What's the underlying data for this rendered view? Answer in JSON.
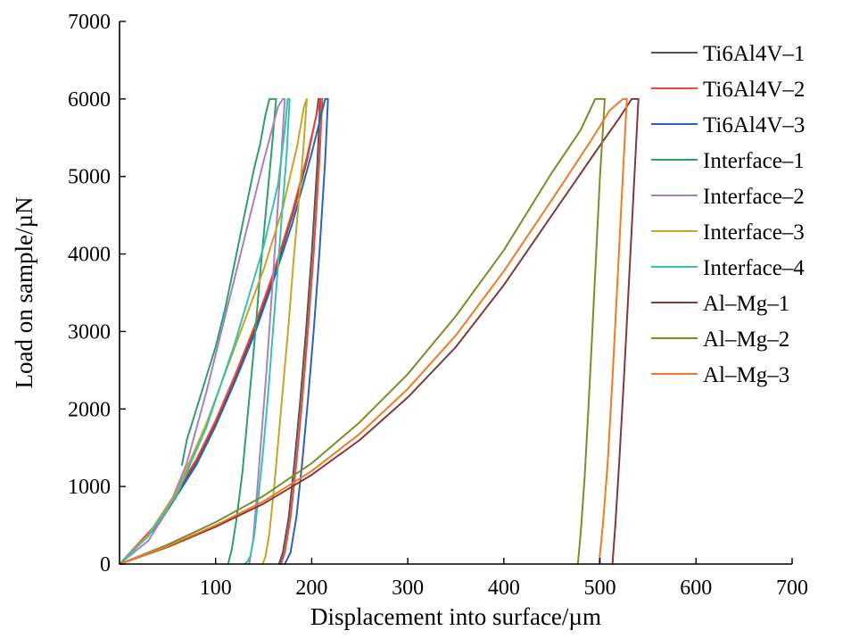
{
  "chart_data": {
    "type": "line",
    "xlabel": "Displacement into surface/µm",
    "ylabel": "Load on sample/µN",
    "xlim": [
      0,
      700
    ],
    "ylim": [
      0,
      7000
    ],
    "x_ticks": [
      100,
      200,
      300,
      400,
      500,
      600,
      700
    ],
    "y_ticks": [
      0,
      1000,
      2000,
      3000,
      4000,
      5000,
      6000,
      7000
    ],
    "grid": false,
    "legend_position": "top-right",
    "series": [
      {
        "name": "Ti6Al4V–1",
        "color": "#555555",
        "x": [
          0,
          40,
          80,
          100,
          120,
          140,
          160,
          180,
          195,
          205,
          207,
          209,
          206,
          200,
          194,
          188,
          182,
          176,
          170,
          166
        ],
        "y": [
          0,
          520,
          1320,
          1820,
          2400,
          3000,
          3700,
          4500,
          5200,
          5800,
          6000,
          6000,
          5200,
          4000,
          3000,
          2100,
          1300,
          600,
          150,
          0
        ]
      },
      {
        "name": "Ti6Al4V–2",
        "color": "#e8483a",
        "x": [
          0,
          40,
          80,
          100,
          120,
          140,
          160,
          180,
          195,
          206,
          209,
          211,
          208,
          202,
          196,
          190,
          184,
          178,
          172,
          168
        ],
        "y": [
          0,
          540,
          1350,
          1850,
          2430,
          3050,
          3750,
          4550,
          5250,
          5850,
          6000,
          6000,
          5200,
          4000,
          3000,
          2100,
          1300,
          600,
          150,
          0
        ]
      },
      {
        "name": "Ti6Al4V–3",
        "color": "#2e62b8",
        "x": [
          0,
          40,
          80,
          100,
          120,
          140,
          160,
          180,
          200,
          212,
          214,
          217,
          214,
          208,
          202,
          196,
          190,
          184,
          178,
          172
        ],
        "y": [
          0,
          500,
          1280,
          1780,
          2350,
          2950,
          3650,
          4400,
          5300,
          5900,
          6000,
          6000,
          5200,
          4000,
          3000,
          2100,
          1300,
          600,
          150,
          0
        ]
      },
      {
        "name": "Interface–1",
        "color": "#2e9e6a",
        "x": [
          65,
          70,
          80,
          90,
          100,
          110,
          120,
          130,
          140,
          146,
          152,
          156,
          159,
          163,
          158,
          152,
          146,
          140,
          134,
          128,
          122,
          117,
          113
        ],
        "y": [
          1280,
          1600,
          2000,
          2400,
          2800,
          3300,
          3900,
          4500,
          5100,
          5400,
          5800,
          6000,
          6000,
          6000,
          5300,
          4500,
          3700,
          2800,
          2000,
          1200,
          600,
          200,
          0
        ]
      },
      {
        "name": "Interface–2",
        "color": "#a77fc4",
        "x": [
          0,
          30,
          50,
          70,
          90,
          110,
          130,
          150,
          165,
          170,
          172,
          168,
          163,
          158,
          153,
          148,
          143,
          139,
          135
        ],
        "y": [
          0,
          300,
          700,
          1300,
          2200,
          3200,
          4200,
          5200,
          5900,
          6000,
          6000,
          5200,
          4300,
          3400,
          2500,
          1700,
          900,
          300,
          0
        ]
      },
      {
        "name": "Interface–3",
        "color": "#c9a227",
        "x": [
          0,
          30,
          60,
          90,
          120,
          150,
          170,
          185,
          192,
          195,
          191,
          186,
          181,
          176,
          171,
          166,
          161,
          156,
          152,
          149
        ],
        "y": [
          0,
          380,
          950,
          1800,
          2800,
          3800,
          4600,
          5400,
          5900,
          6000,
          5300,
          4600,
          3900,
          3100,
          2400,
          1700,
          1000,
          400,
          100,
          0
        ]
      },
      {
        "name": "Interface–4",
        "color": "#3bbfb0",
        "x": [
          0,
          30,
          60,
          90,
          120,
          150,
          165,
          172,
          175,
          177,
          174,
          169,
          164,
          159,
          154,
          149,
          144,
          140,
          136,
          133,
          130
        ],
        "y": [
          0,
          360,
          900,
          1750,
          2850,
          4100,
          4900,
          5600,
          6000,
          6000,
          5300,
          4500,
          3700,
          2900,
          2100,
          1400,
          800,
          350,
          100,
          30,
          0
        ]
      },
      {
        "name": "Al–Mg–1",
        "color": "#7d3b3b",
        "x": [
          0,
          50,
          100,
          150,
          200,
          250,
          300,
          350,
          400,
          450,
          500,
          520,
          533,
          540,
          535,
          530,
          525,
          520,
          516,
          513
        ],
        "y": [
          0,
          220,
          480,
          780,
          1150,
          1600,
          2150,
          2800,
          3600,
          4500,
          5400,
          5750,
          6000,
          6000,
          4800,
          3600,
          2400,
          1300,
          500,
          0
        ]
      },
      {
        "name": "Al–Mg–2",
        "color": "#7f8a2a",
        "x": [
          0,
          50,
          100,
          150,
          200,
          250,
          300,
          350,
          400,
          450,
          480,
          495,
          505,
          500,
          496,
          492,
          488,
          484,
          480,
          477
        ],
        "y": [
          0,
          250,
          540,
          880,
          1300,
          1830,
          2450,
          3200,
          4050,
          5050,
          5600,
          6000,
          6000,
          5000,
          4000,
          3000,
          2000,
          1100,
          400,
          0
        ]
      },
      {
        "name": "Al–Mg–3",
        "color": "#f07a24",
        "x": [
          0,
          50,
          100,
          150,
          200,
          250,
          300,
          350,
          400,
          450,
          490,
          510,
          524,
          528,
          523,
          518,
          513,
          508,
          503,
          499
        ],
        "y": [
          0,
          230,
          500,
          810,
          1200,
          1680,
          2260,
          2950,
          3780,
          4700,
          5450,
          5850,
          6000,
          6000,
          4800,
          3600,
          2400,
          1300,
          500,
          0
        ]
      }
    ]
  }
}
